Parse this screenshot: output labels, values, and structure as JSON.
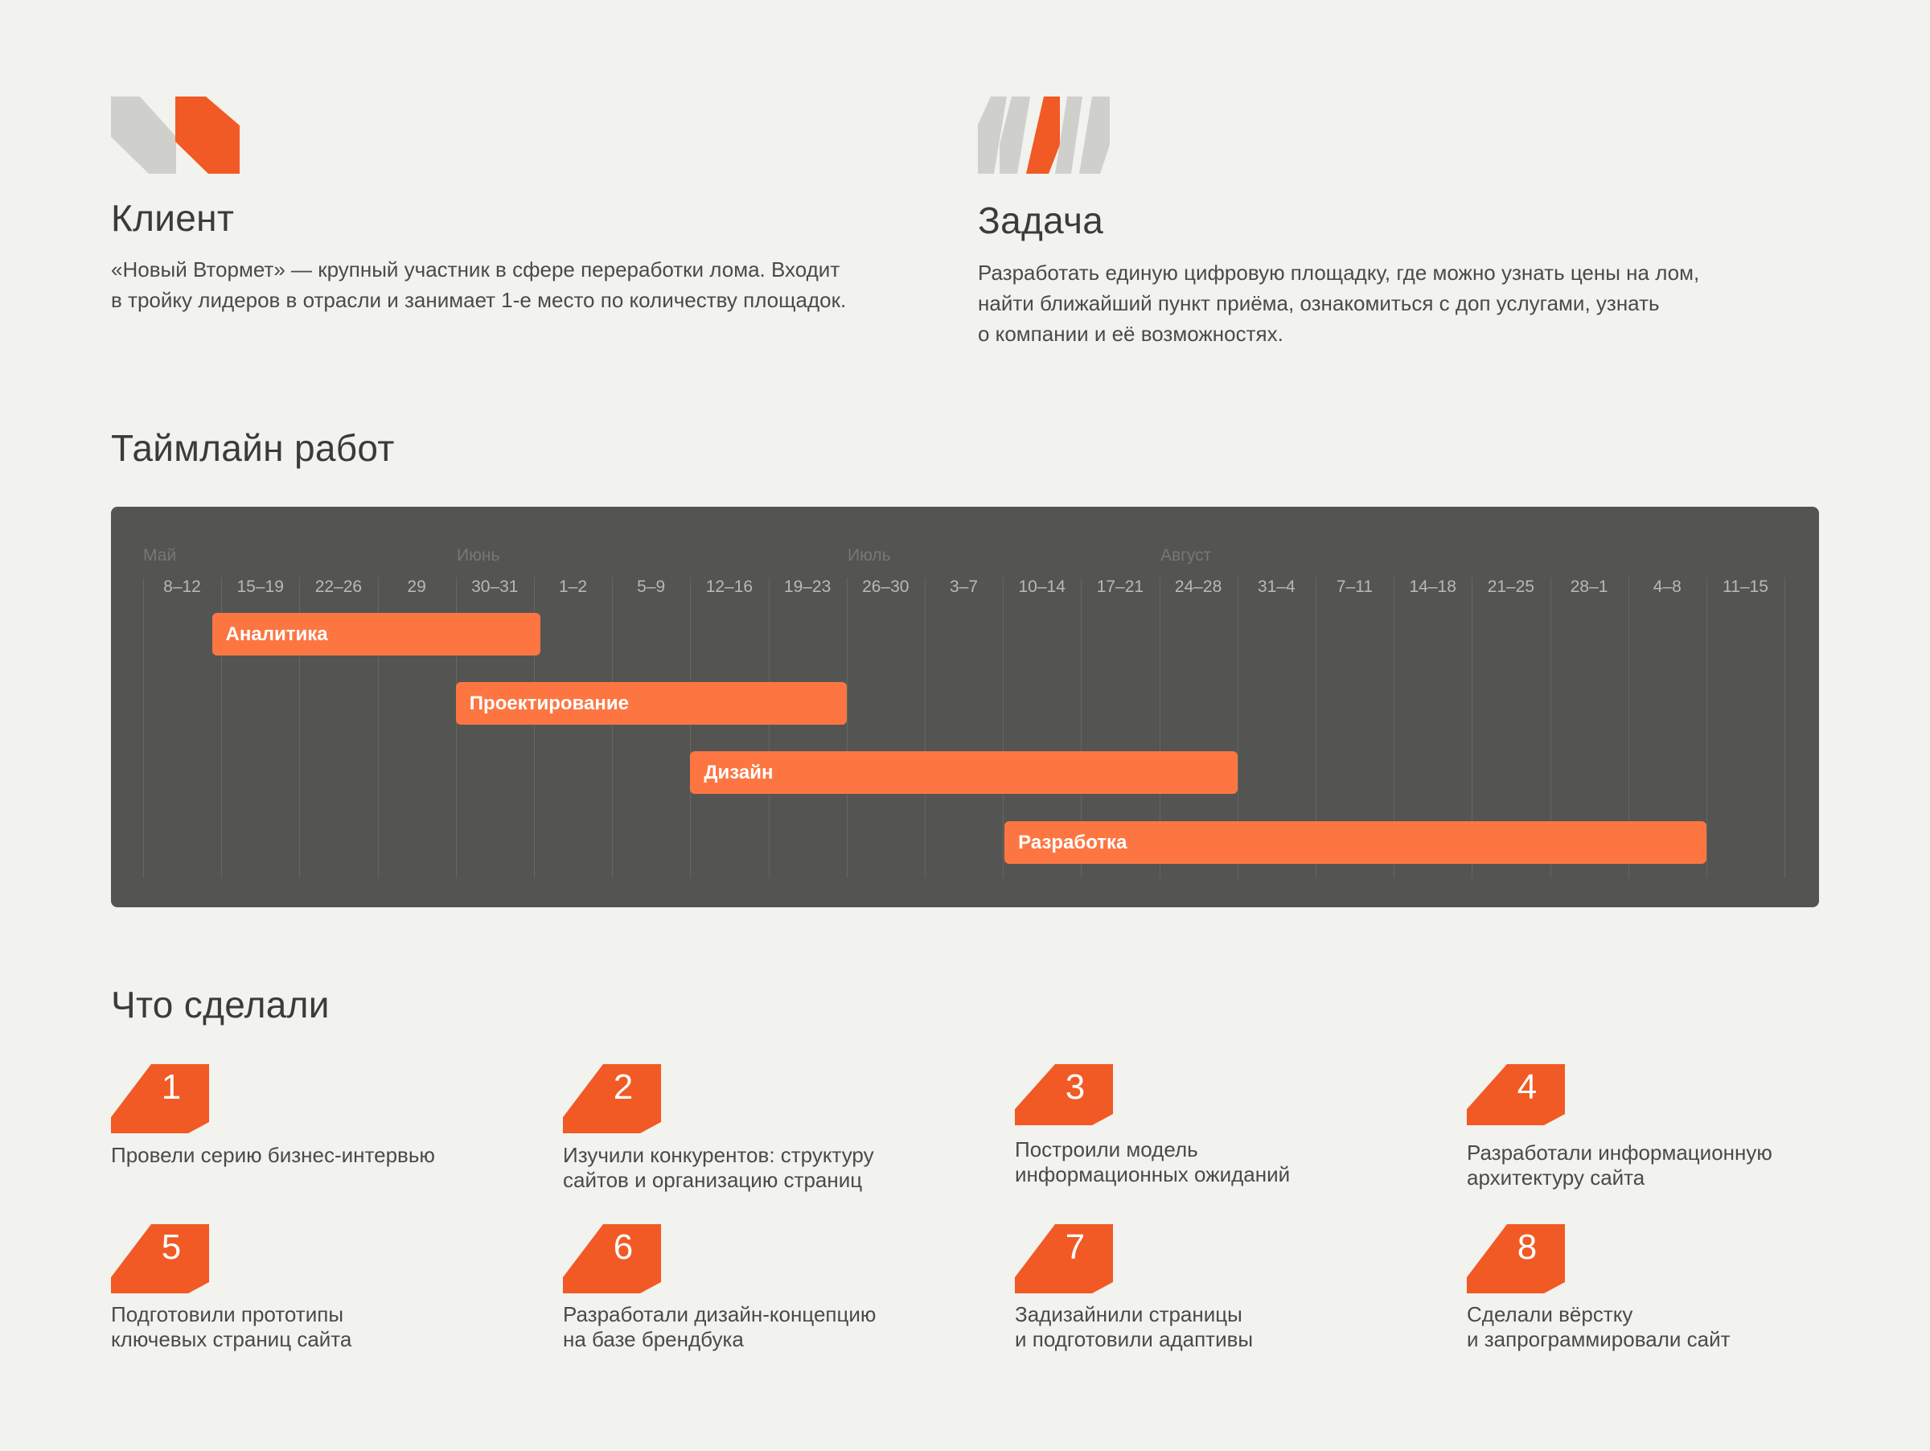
{
  "client": {
    "title": "Клиент",
    "lines": [
      "«Новый Втормет» — крупный участник в сфере переработки лома. Входит",
      "в тройку лидеров в отрасли и занимает 1-е место по количеству площадок."
    ]
  },
  "task": {
    "title": "Задача",
    "lines": [
      "Разработать единую цифровую площадку,  где можно узнать цены на лом,",
      "найти ближайший пункт приёма, ознакомиться с доп услугами, узнать",
      "о  компании и её возможностях."
    ]
  },
  "timeline": {
    "title": "Таймлайн работ",
    "months": [
      "Май",
      "Июнь",
      "Июль",
      "Август"
    ],
    "weeks": [
      "8–12",
      "15–19",
      "22–26",
      "29",
      "30–31",
      "1–2",
      "5–9",
      "12–16",
      "19–23",
      "26–30",
      "3–7",
      "10–14",
      "17–21",
      "24–28",
      "31–4",
      "7–11",
      "14–18",
      "21–25",
      "28–1",
      "4–8",
      "11–15"
    ],
    "phases": [
      {
        "label": "Аналитика",
        "start_week": 0.88,
        "end_week": 5.08
      },
      {
        "label": "Проектирование",
        "start_week": 4.0,
        "end_week": 9.0
      },
      {
        "label": "Дизайн",
        "start_week": 7.0,
        "end_week": 14.0
      },
      {
        "label": "Разработка",
        "start_week": 11.02,
        "end_week": 20.0
      }
    ]
  },
  "done": {
    "title": "Что сделали",
    "items": [
      {
        "num": "1",
        "lines": [
          "Провели серию бизнес-интервью"
        ]
      },
      {
        "num": "2",
        "lines": [
          "Изучили конкурентов: структуру",
          "сайтов и организацию страниц"
        ]
      },
      {
        "num": "3",
        "lines": [
          "Построили модель",
          "информационных ожиданий"
        ]
      },
      {
        "num": "4",
        "lines": [
          "Разработали информационную",
          "архитектуру сайта"
        ]
      },
      {
        "num": "5",
        "lines": [
          "Подготовили прототипы",
          "ключевых страниц сайта"
        ]
      },
      {
        "num": "6",
        "lines": [
          "Разработали дизайн-концепцию",
          "на базе брендбука"
        ]
      },
      {
        "num": "7",
        "lines": [
          "Задизайнили страницы",
          "и подготовили адаптивы"
        ]
      },
      {
        "num": "8",
        "lines": [
          "Сделали вёрстку",
          "и запрограммировали сайт"
        ]
      }
    ]
  },
  "colors": {
    "accent": "#f15a24",
    "bar": "#fd7642",
    "grey_shape": "#cfcfcb",
    "panel": "#545552",
    "background": "#f2f2ee"
  },
  "icons": {
    "client": "client-logo-icon",
    "task": "task-stripes-icon",
    "step": "step-badge-icon"
  }
}
